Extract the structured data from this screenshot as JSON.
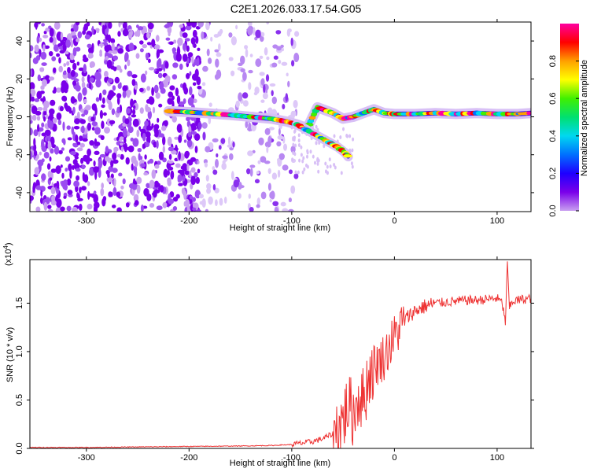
{
  "title": "C2E1.2026.033.17.54.G05",
  "chart_data": [
    {
      "id": "spectrogram",
      "type": "heatmap",
      "xlabel": "Height of straight line (km)",
      "ylabel": "Frequency (Hz)",
      "xlim": [
        -355,
        133
      ],
      "ylim": [
        -50,
        50
      ],
      "xticks": [
        -300,
        -200,
        -100,
        0,
        100
      ],
      "xtick_labels": [
        "-300",
        "-200",
        "-100",
        "0",
        "100"
      ],
      "yticks": [
        -40,
        -20,
        0,
        20,
        40
      ],
      "ytick_labels": [
        "-40",
        "-20",
        "0",
        "20",
        "40"
      ],
      "colorbar": {
        "label": "Normalized spectral amplitude",
        "range": [
          0,
          1
        ],
        "ticks": [
          0,
          0.2,
          0.4,
          0.6,
          0.8
        ],
        "tick_labels": [
          "0.0",
          "0.2",
          "0.4",
          "0.6",
          "0.8"
        ],
        "colormap": [
          "#ffffff",
          "#c9a0f0",
          "#7a00ea",
          "#1e00ff",
          "#0070ff",
          "#00d8f0",
          "#00e070",
          "#40f000",
          "#ffff00",
          "#ffa000",
          "#ff0000",
          "#ff00a0"
        ]
      },
      "noise_region_x": [
        -355,
        -95
      ],
      "main_trace": {
        "x": [
          -220,
          -200,
          -180,
          -160,
          -140,
          -120,
          -105,
          -95,
          -85,
          -75,
          -60,
          -50,
          -40,
          -30,
          -20,
          -10,
          0,
          20,
          40,
          60,
          80,
          100,
          120,
          133
        ],
        "y": [
          3,
          2.5,
          1.8,
          1,
          0,
          -1,
          -2.5,
          -4,
          -6,
          5,
          2,
          -1,
          0,
          2,
          4,
          2,
          1.5,
          1.5,
          2,
          1.5,
          2,
          1.5,
          1.5,
          2
        ]
      },
      "branch_trace": {
        "x": [
          -95,
          -85,
          -75,
          -65,
          -55,
          -48,
          -45
        ],
        "y": [
          -4,
          -7,
          -10,
          -13,
          -16,
          -19,
          -21
        ]
      }
    },
    {
      "id": "snr",
      "type": "line",
      "xlabel": "Height of straight line (km)",
      "ylabel": "SNR (10 * v/v)",
      "multiplier_label": "(x10",
      "multiplier_exp": "4",
      "color": "#ee3333",
      "xlim": [
        -355,
        133
      ],
      "ylim": [
        0,
        1.95
      ],
      "xticks": [
        -300,
        -200,
        -100,
        0,
        100
      ],
      "xtick_labels": [
        "-300",
        "-200",
        "-100",
        "0",
        "100"
      ],
      "yticks": [
        0,
        0.5,
        1.0,
        1.5
      ],
      "ytick_labels": [
        "0.0",
        "0.5",
        "1.0",
        "1.5"
      ],
      "series": [
        {
          "name": "SNR",
          "x": [
            -355,
            -300,
            -250,
            -200,
            -150,
            -120,
            -100,
            -80,
            -70,
            -60,
            -50,
            -45,
            -40,
            -35,
            -30,
            -25,
            -20,
            -15,
            -10,
            -5,
            0,
            5,
            10,
            15,
            20,
            30,
            40,
            50,
            60,
            70,
            80,
            90,
            100,
            105,
            108,
            110,
            112,
            115,
            120,
            125,
            133
          ],
          "y": [
            0.01,
            0.01,
            0.015,
            0.02,
            0.025,
            0.03,
            0.04,
            0.07,
            0.1,
            0.15,
            0.3,
            0.45,
            0.35,
            0.55,
            0.5,
            0.75,
            0.85,
            0.9,
            0.95,
            1.05,
            1.15,
            1.25,
            1.32,
            1.38,
            1.42,
            1.47,
            1.5,
            1.51,
            1.52,
            1.53,
            1.53,
            1.54,
            1.55,
            1.5,
            1.3,
            1.9,
            1.45,
            1.52,
            1.53,
            1.54,
            1.55
          ]
        }
      ]
    }
  ]
}
